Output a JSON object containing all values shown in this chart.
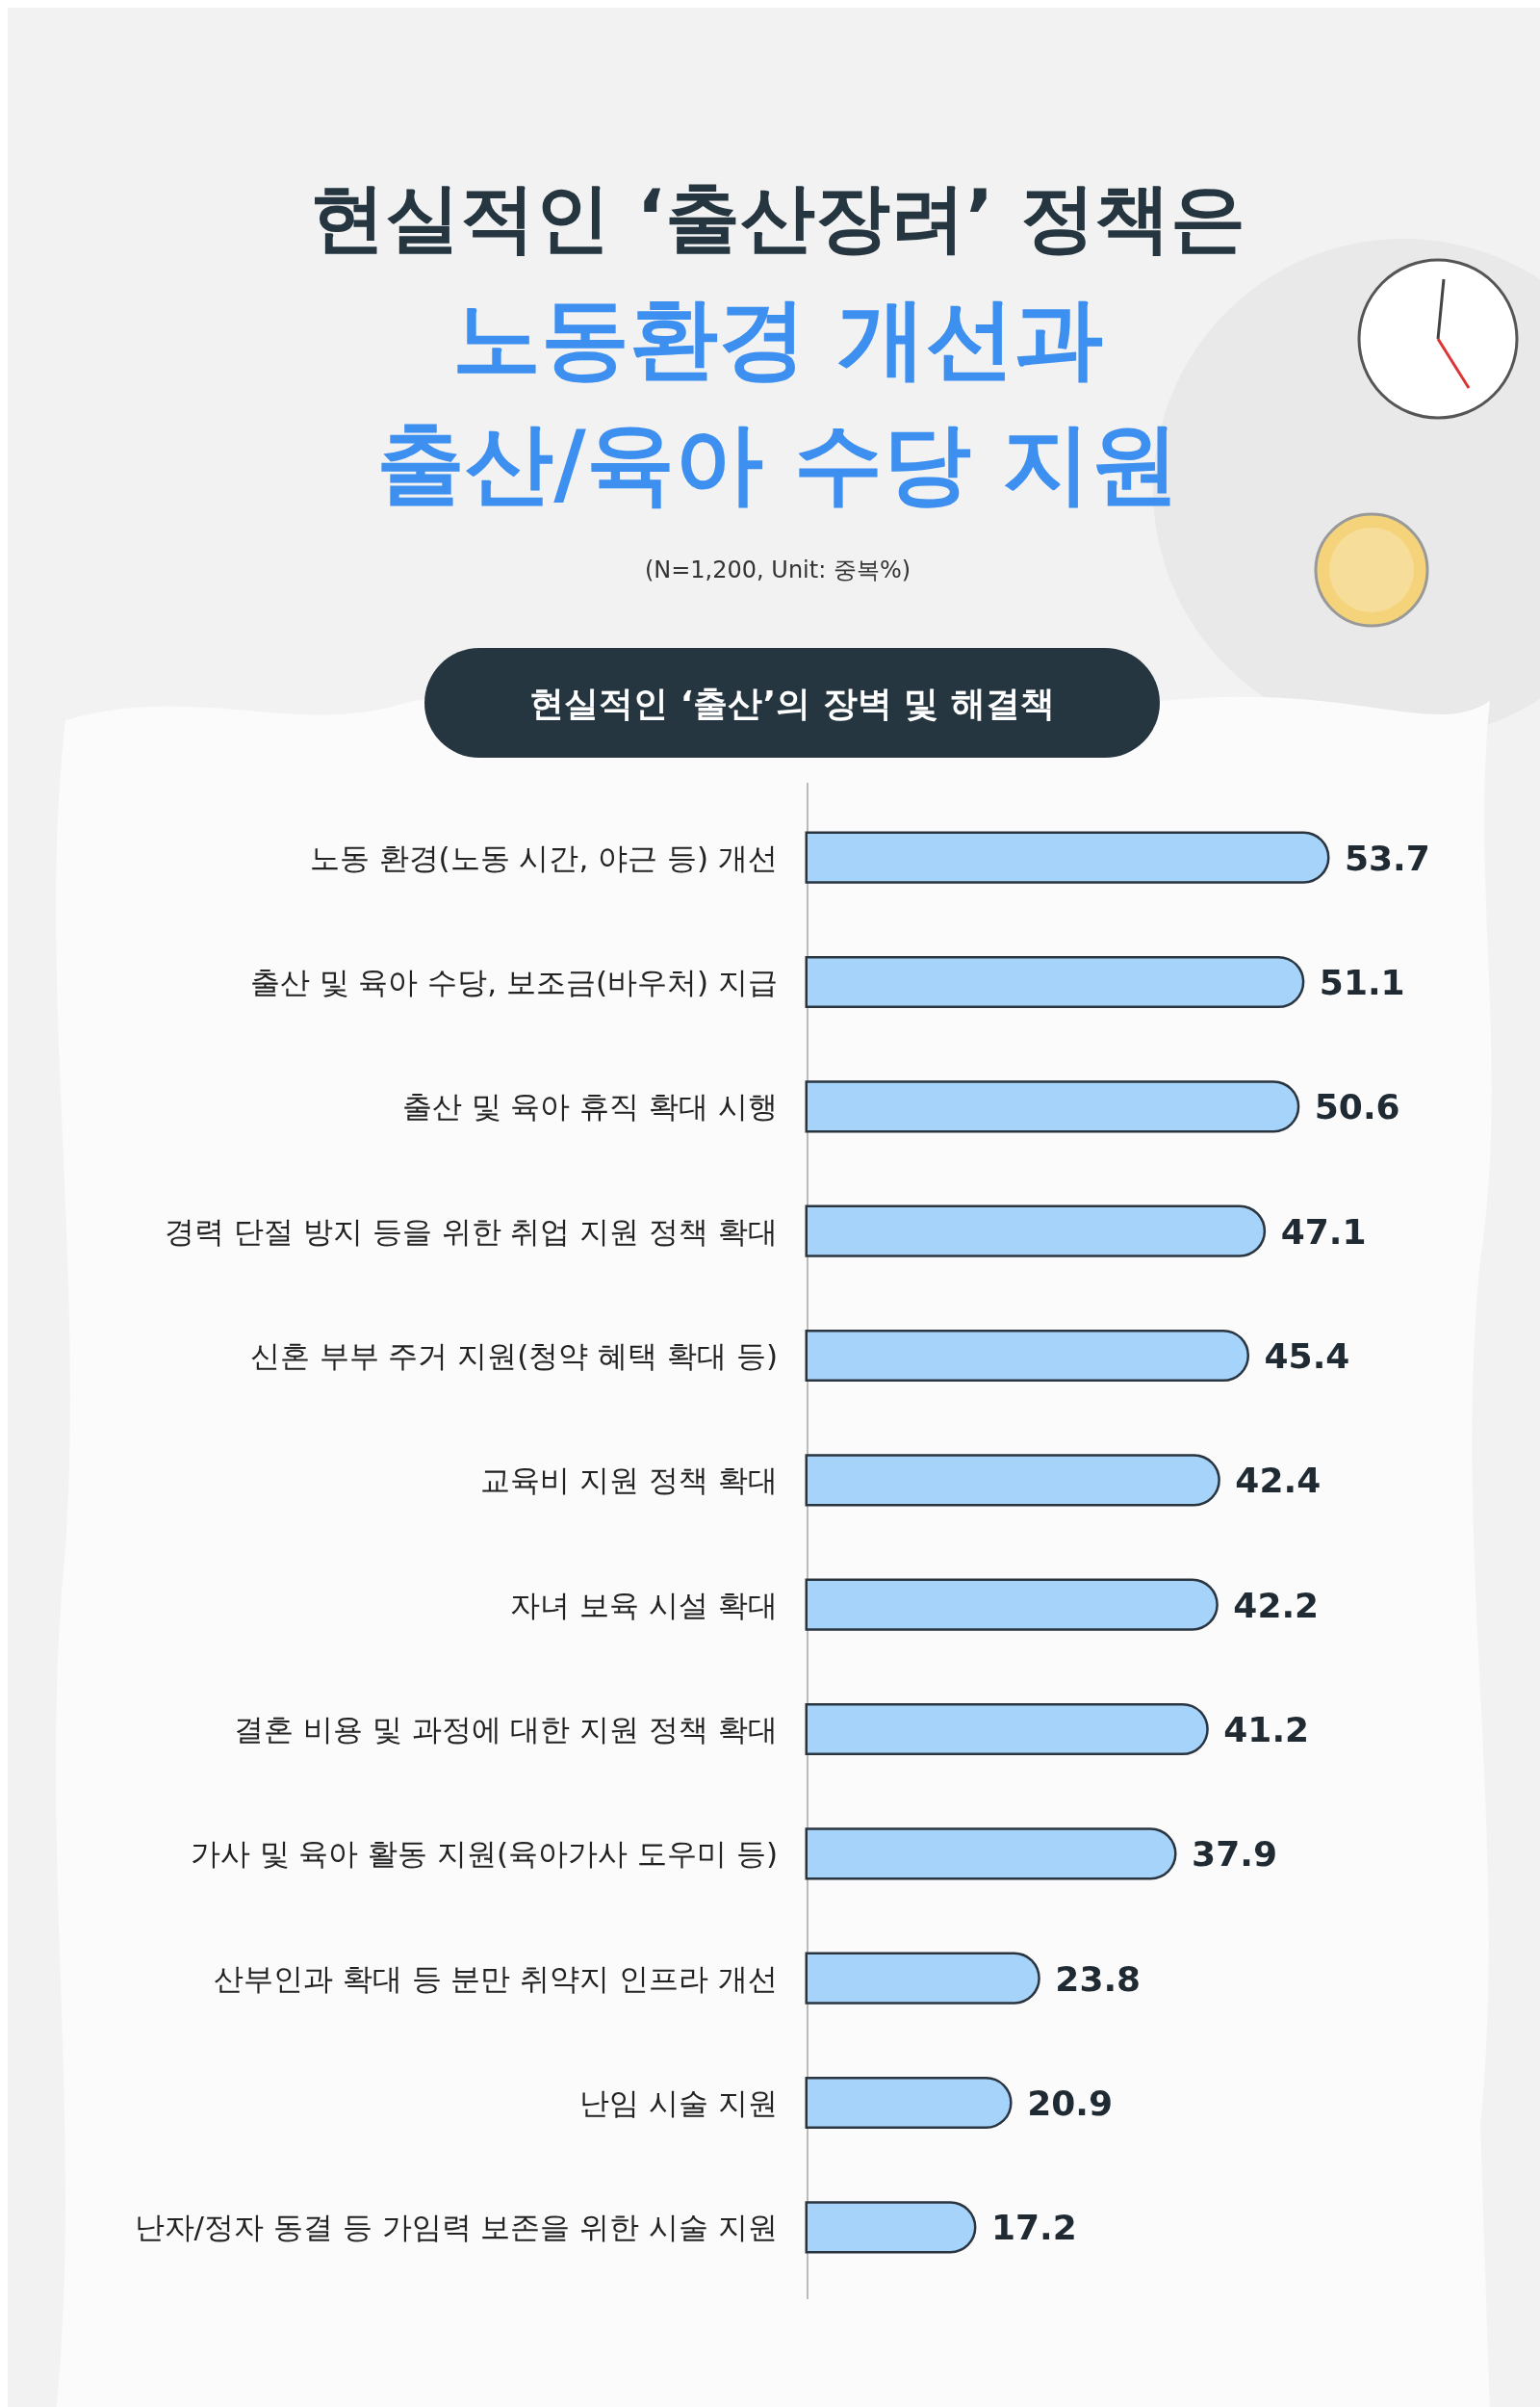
{
  "chart_data": {
    "type": "bar",
    "orientation": "horizontal",
    "title": "현실적인 ‘출산장려’ 정책은\n노동환경 개선과\n출산/육아 수당 지원",
    "subtitle": "현실적인 ‘출산’의 장벽 및 해결책",
    "annotations": [
      "(N=1,200, Unit: 중복%)"
    ],
    "categories": [
      "노동 환경(노동 시간, 야근 등) 개선",
      "출산 및 육아 수당, 보조금(바우처) 지급",
      "출산 및 육아 휴직 확대 시행",
      "경력 단절 방지 등을 위한 취업 지원 정책 확대",
      "신혼 부부 주거 지원(청약 혜택 확대 등)",
      "교육비 지원 정책 확대",
      "자녀 보육 시설 확대",
      "결혼 비용 및 과정에 대한 지원 정책 확대",
      "가사 및 육아 활동 지원(육아가사 도우미 등)",
      "산부인과 확대 등 분만 취약지 인프라 개선",
      "난임 시술 지원",
      "난자/정자 동결 등 가임력 보존을 위한 시술 지원"
    ],
    "values": [
      53.7,
      51.1,
      50.6,
      47.1,
      45.4,
      42.4,
      42.2,
      41.2,
      37.9,
      23.8,
      20.9,
      17.2
    ],
    "color": "#a6d3fa",
    "data_labels": true
  }
}
